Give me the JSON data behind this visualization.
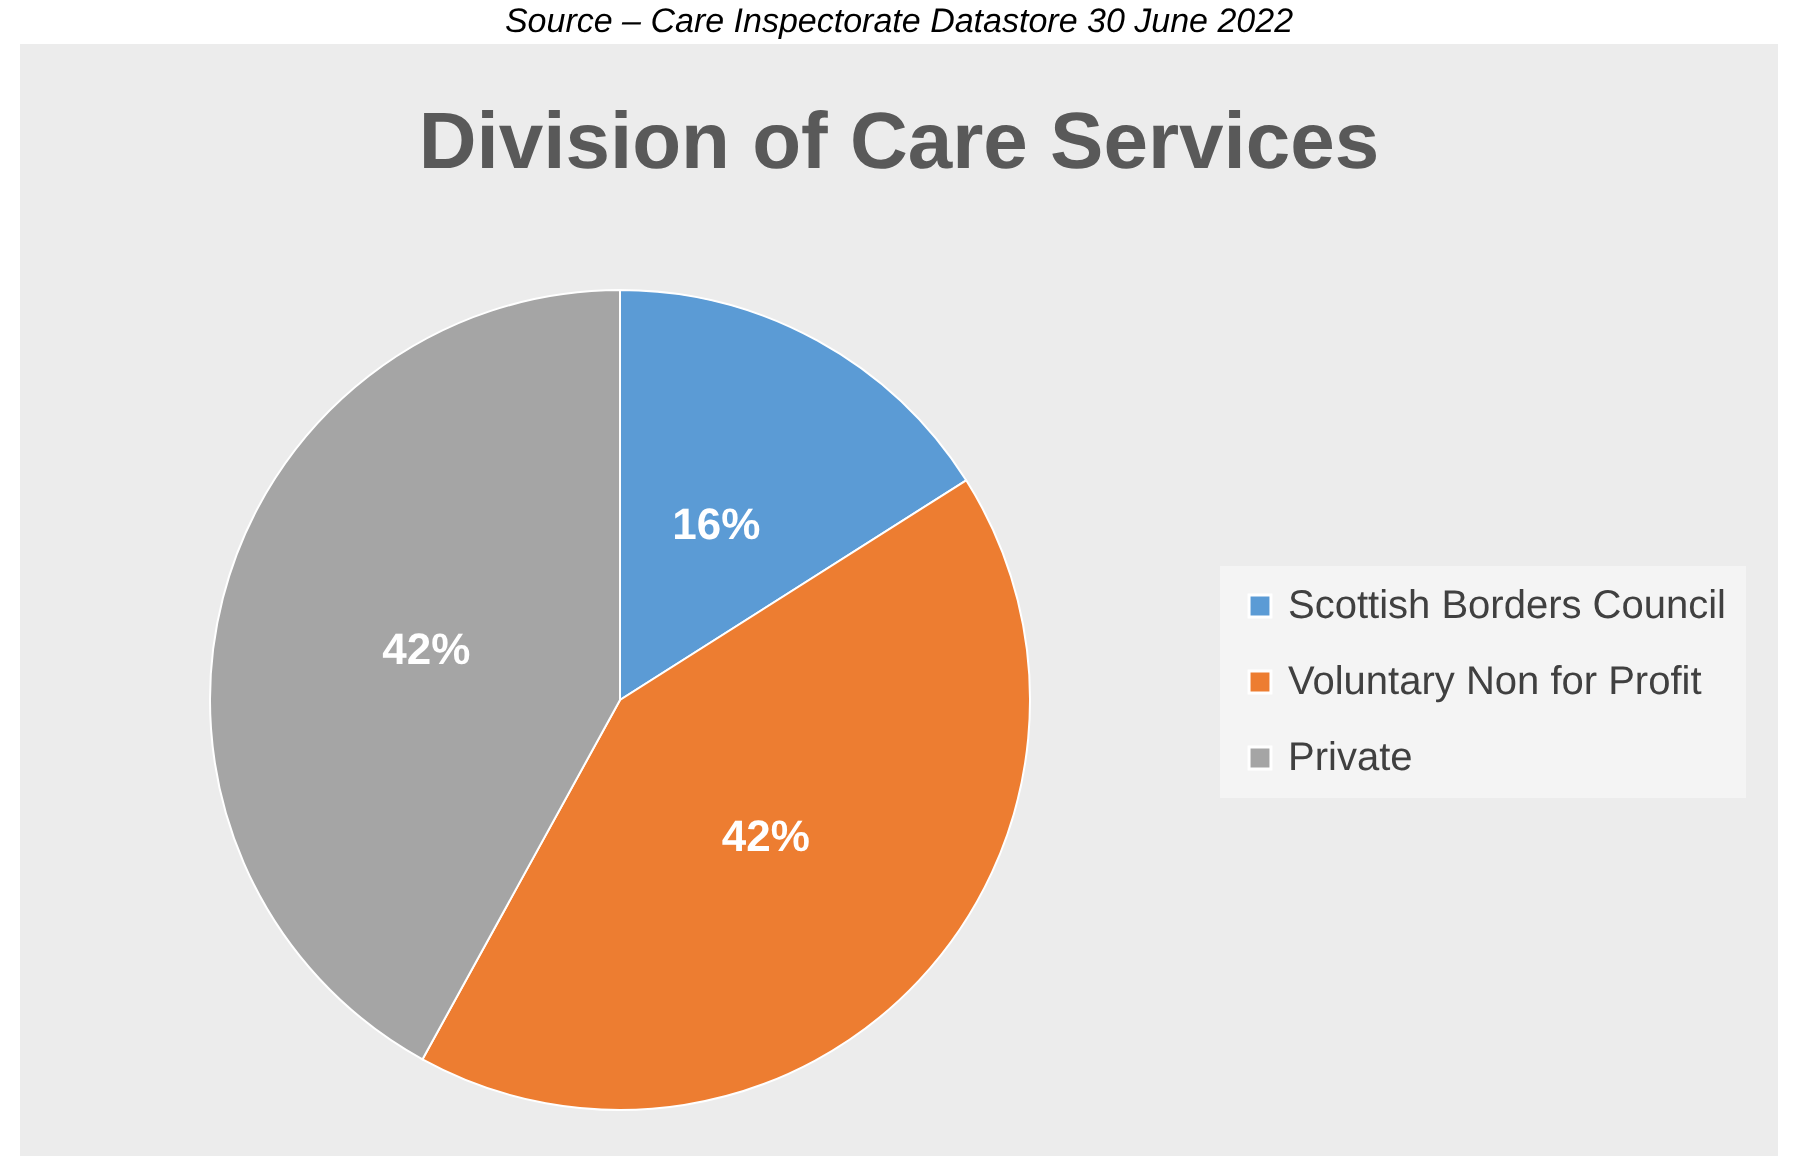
{
  "chart_data": {
    "type": "pie",
    "title": "Division of Care Services",
    "annotations": [
      "Source – Care Inspectorate Datastore 30 June 2022"
    ],
    "categories": [
      "Scottish Borders Council",
      "Voluntary Non for Profit",
      "Private"
    ],
    "values": [
      16,
      42,
      42
    ],
    "colors": [
      "#5b9bd5",
      "#ed7d31",
      "#a5a5a5"
    ],
    "value_labels": [
      "16%",
      "42%",
      "42%"
    ],
    "legend": "right"
  }
}
